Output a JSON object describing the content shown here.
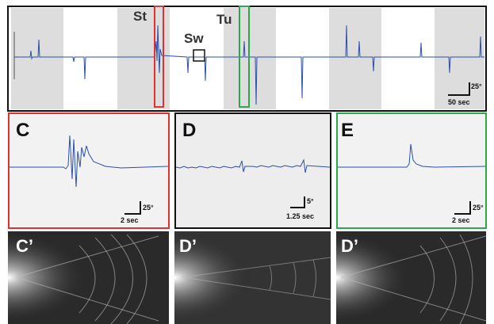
{
  "top_panel": {
    "labels": {
      "st": "St",
      "sw": "Sw",
      "tu": "Tu"
    },
    "scale": {
      "angle": "25°",
      "time": "50 sec"
    }
  },
  "panels": [
    {
      "letter": "C",
      "scale_angle": "25°",
      "scale_time": "2 sec"
    },
    {
      "letter": "D",
      "scale_angle": "5°",
      "scale_time": "1.25 sec"
    },
    {
      "letter": "E",
      "scale_angle": "25°",
      "scale_time": "2 sec"
    }
  ],
  "images": [
    {
      "label": "C’"
    },
    {
      "label": "D’"
    },
    {
      "label": "D’"
    }
  ]
}
